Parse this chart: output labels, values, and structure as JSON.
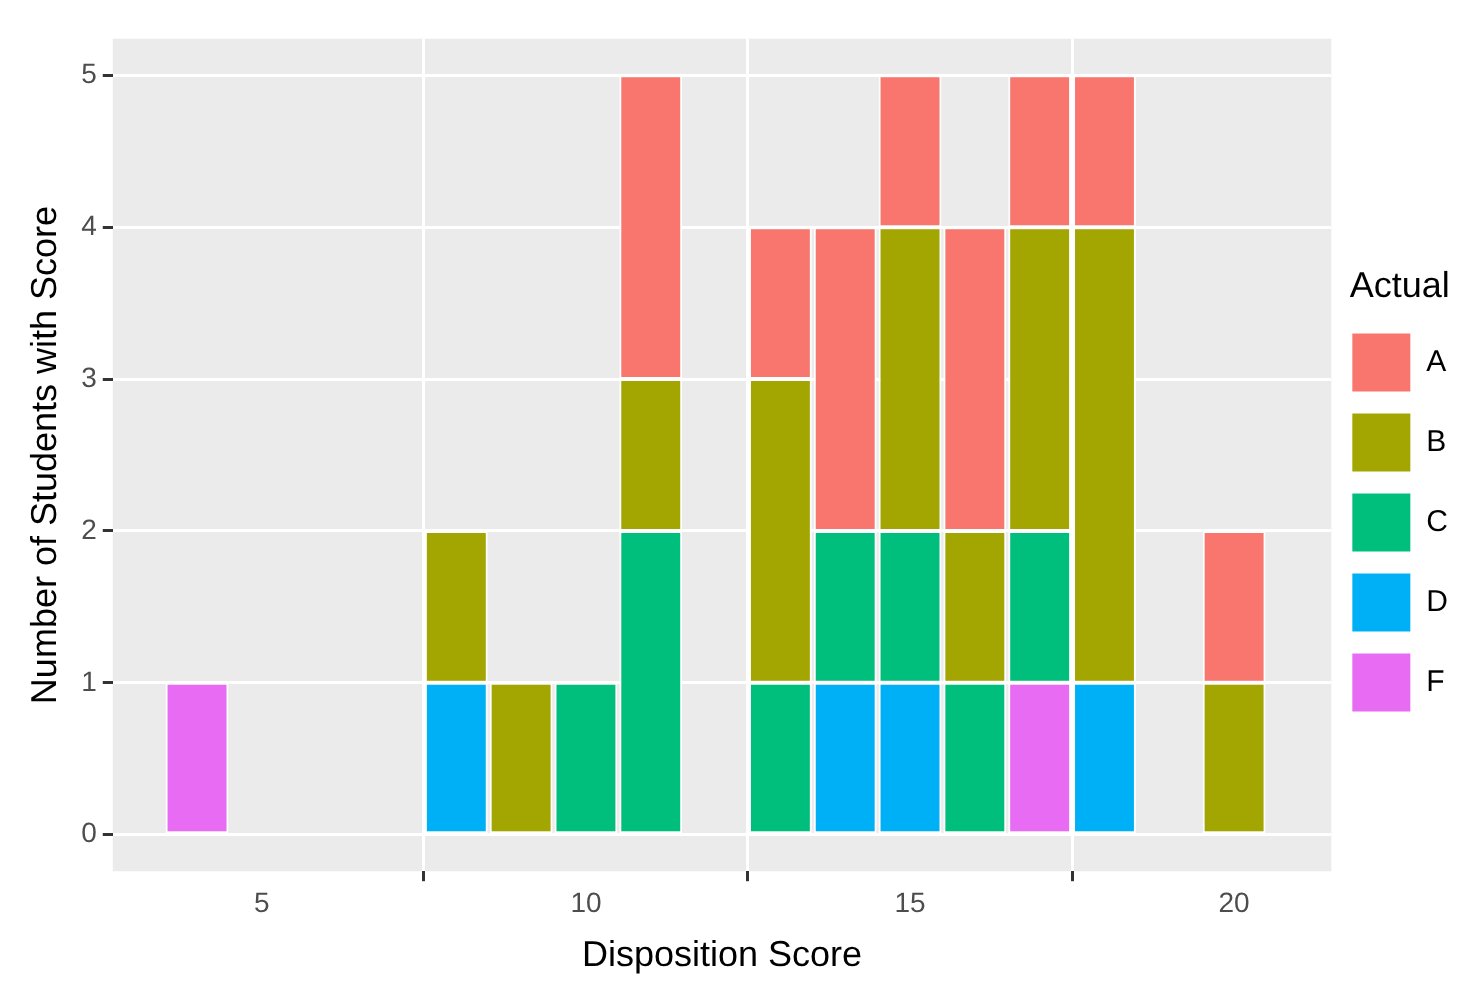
{
  "chart_data": {
    "type": "bar",
    "stacked": true,
    "xlabel": "Disposition Score",
    "ylabel": "Number of Students with Score",
    "legend_title": "Actual",
    "legend": "right",
    "grid": true,
    "x": [
      4,
      8,
      9,
      10,
      11,
      13,
      14,
      15,
      16,
      17,
      18,
      20
    ],
    "xlim": [
      2.7,
      21.5
    ],
    "xticks": [
      5,
      10,
      15,
      20
    ],
    "ylim": [
      -0.24,
      5.24
    ],
    "yticks": [
      0,
      1,
      2,
      3,
      4,
      5
    ],
    "series": [
      {
        "name": "F",
        "color": "#e76bf3",
        "values": [
          1,
          null,
          null,
          null,
          null,
          null,
          null,
          null,
          null,
          1,
          null,
          null
        ]
      },
      {
        "name": "D",
        "color": "#00b0f6",
        "values": [
          null,
          1,
          null,
          null,
          null,
          null,
          1,
          1,
          null,
          null,
          1,
          null
        ]
      },
      {
        "name": "C",
        "color": "#00bf7d",
        "values": [
          null,
          null,
          null,
          1,
          2,
          1,
          1,
          1,
          1,
          1,
          null,
          null
        ]
      },
      {
        "name": "B",
        "color": "#a3a500",
        "values": [
          null,
          1,
          1,
          null,
          1,
          2,
          null,
          2,
          1,
          2,
          3,
          1
        ]
      },
      {
        "name": "A",
        "color": "#f8766d",
        "values": [
          null,
          null,
          null,
          null,
          2,
          1,
          2,
          1,
          2,
          1,
          1,
          1
        ]
      }
    ]
  }
}
